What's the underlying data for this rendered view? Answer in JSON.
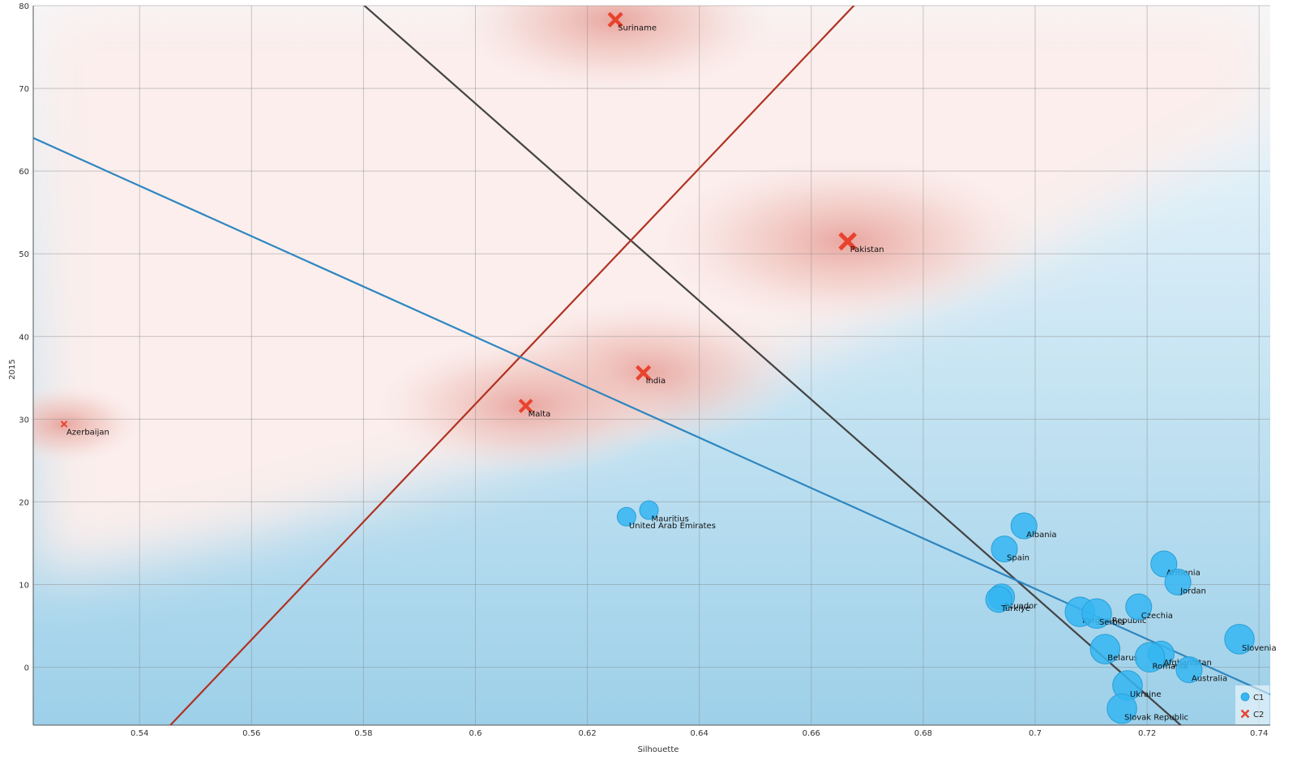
{
  "chart_data": {
    "type": "scatter",
    "xlabel": "Silhouette",
    "ylabel": "2015",
    "xlim": [
      0.521,
      0.742
    ],
    "ylim": [
      -7,
      80
    ],
    "xticks": [
      0.54,
      0.56,
      0.58,
      0.6,
      0.62,
      0.64,
      0.66,
      0.68,
      0.7,
      0.72,
      0.74
    ],
    "xtick_labels": [
      "0.54",
      "0.56",
      "0.58",
      "0.6",
      "0.62",
      "0.64",
      "0.66",
      "0.68",
      "0.7",
      "0.72",
      "0.74"
    ],
    "yticks": [
      0,
      10,
      20,
      30,
      40,
      50,
      60,
      70,
      80
    ],
    "ytick_labels": [
      "0",
      "10",
      "20",
      "30",
      "40",
      "50",
      "60",
      "70",
      "80"
    ],
    "grid": true,
    "legend_position": "bottom-right",
    "series": [
      {
        "name": "C1",
        "marker": "circle",
        "color": "#35b6f2",
        "points": [
          {
            "label": "Mauritius",
            "x": 0.631,
            "y": 19.0,
            "size": 1
          },
          {
            "label": "United Arab Emirates",
            "x": 0.627,
            "y": 18.2,
            "size": 1
          },
          {
            "label": "Albania",
            "x": 0.698,
            "y": 17.1,
            "size": 2
          },
          {
            "label": "Spain",
            "x": 0.6945,
            "y": 14.3,
            "size": 2
          },
          {
            "label": "Armenia",
            "x": 0.723,
            "y": 12.5,
            "size": 2
          },
          {
            "label": "Jordan",
            "x": 0.7255,
            "y": 10.3,
            "size": 2
          },
          {
            "label": "Ecuador",
            "x": 0.694,
            "y": 8.5,
            "size": 2
          },
          {
            "label": "Türkiye",
            "x": 0.6935,
            "y": 8.2,
            "size": 2
          },
          {
            "label": "Kyrgyz Republic",
            "x": 0.708,
            "y": 6.7,
            "size": 2.5
          },
          {
            "label": "Serbia",
            "x": 0.711,
            "y": 6.5,
            "size": 2.5
          },
          {
            "label": "Czechia",
            "x": 0.7185,
            "y": 7.3,
            "size": 2
          },
          {
            "label": "Slovenia",
            "x": 0.7365,
            "y": 3.4,
            "size": 2.5
          },
          {
            "label": "Belarus",
            "x": 0.7125,
            "y": 2.2,
            "size": 2.5
          },
          {
            "label": "Afghanistan",
            "x": 0.7225,
            "y": 1.6,
            "size": 2
          },
          {
            "label": "Romania",
            "x": 0.7205,
            "y": 1.2,
            "size": 2.5
          },
          {
            "label": "Australia",
            "x": 0.7275,
            "y": -0.3,
            "size": 2
          },
          {
            "label": "Ukraine",
            "x": 0.7165,
            "y": -2.2,
            "size": 2.5
          },
          {
            "label": "Slovak Republic",
            "x": 0.7155,
            "y": -5.0,
            "size": 2.5
          }
        ]
      },
      {
        "name": "C2",
        "marker": "cross",
        "color": "#e8432e",
        "points": [
          {
            "label": "Suriname",
            "x": 0.625,
            "y": 78.3,
            "size": 2
          },
          {
            "label": "Pakistan",
            "x": 0.6665,
            "y": 51.5,
            "size": 2.5
          },
          {
            "label": "India",
            "x": 0.63,
            "y": 35.6,
            "size": 2
          },
          {
            "label": "Malta",
            "x": 0.609,
            "y": 31.6,
            "size": 1.8
          },
          {
            "label": "Azerbaijan",
            "x": 0.5265,
            "y": 29.4,
            "size": 0.5
          }
        ]
      }
    ],
    "lines": [
      {
        "color": "#444444",
        "from": [
          0.5785,
          81
        ],
        "to": [
          0.726,
          -7
        ]
      },
      {
        "color": "#b03222",
        "from": [
          0.5455,
          -7
        ],
        "to": [
          0.669,
          81
        ]
      },
      {
        "color": "#2d86c0",
        "from": [
          0.521,
          64
        ],
        "to": [
          0.742,
          -3.3
        ]
      }
    ]
  }
}
